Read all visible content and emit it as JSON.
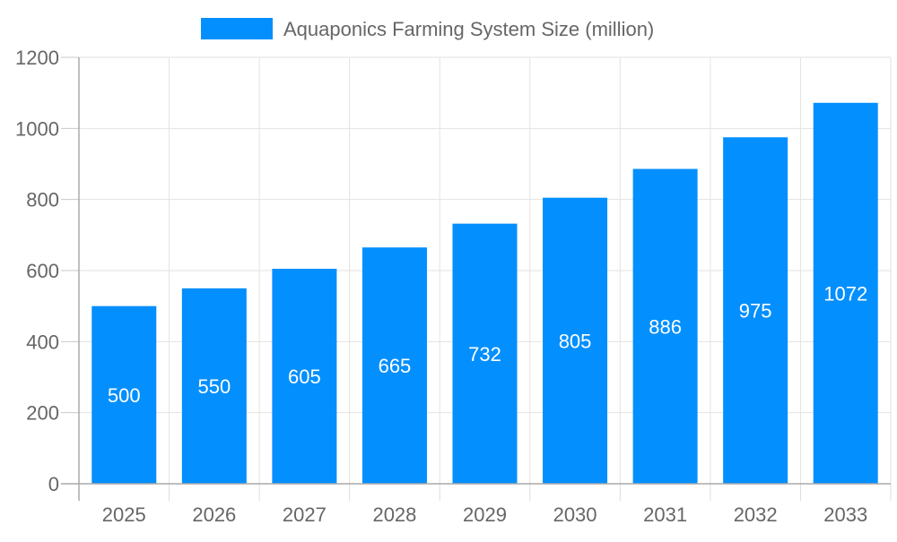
{
  "chart_data": {
    "type": "bar",
    "title": "",
    "xlabel": "",
    "ylabel": "",
    "categories": [
      "2025",
      "2026",
      "2027",
      "2028",
      "2029",
      "2030",
      "2031",
      "2032",
      "2033"
    ],
    "series": [
      {
        "name": "Aquaponics Farming System Size (million)",
        "values": [
          500,
          550,
          605,
          665,
          732,
          805,
          886,
          975,
          1072
        ],
        "color": "#038ffd"
      }
    ],
    "ylim": [
      0,
      1200
    ],
    "yticks": [
      0,
      200,
      400,
      600,
      800,
      1000,
      1200
    ],
    "grid": true,
    "legend_position": "top",
    "data_labels": true
  }
}
